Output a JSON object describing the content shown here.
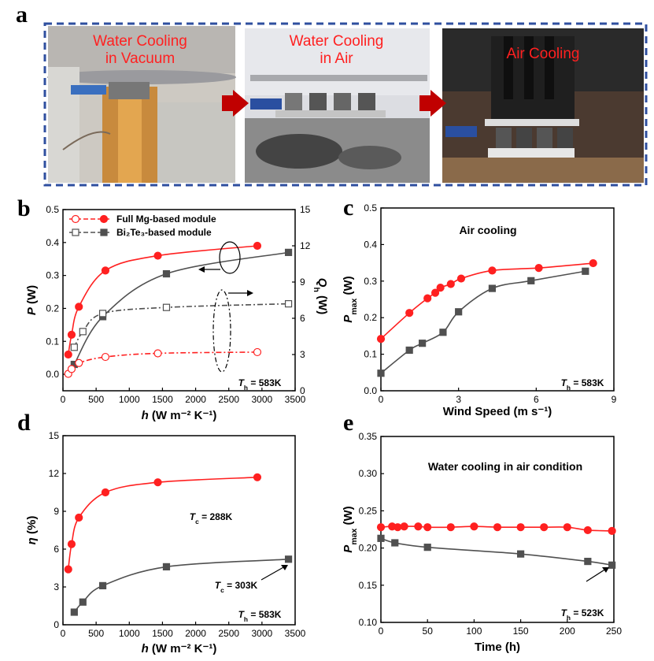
{
  "panel_letters": {
    "a": "a",
    "b": "b",
    "c": "c",
    "d": "d",
    "e": "e"
  },
  "panel_a": {
    "photo_labels": [
      {
        "line1": "Water Cooling",
        "line2": "in Vacuum"
      },
      {
        "line1": "Water Cooling",
        "line2": "in Air"
      },
      {
        "line1": "Air  Cooling",
        "line2": ""
      }
    ],
    "arrow_color": "#c00000",
    "frame_color": "#2f4f9f"
  },
  "colors": {
    "red": "#ff2020",
    "gray": "#505050"
  },
  "chart_data": [
    {
      "id": "b",
      "type": "line",
      "xlabel": "h (W m⁻² K⁻¹)",
      "ylabel_left": "P (W)",
      "ylabel_right": "Q_h (W)",
      "xlim": [
        0,
        3500
      ],
      "ylim": [
        -0.05,
        0.5
      ],
      "ylim_right": [
        0,
        15
      ],
      "xticks": [
        0,
        500,
        1000,
        1500,
        2000,
        2500,
        3000,
        3500
      ],
      "yticks": [
        0.0,
        0.1,
        0.2,
        0.3,
        0.4,
        0.5
      ],
      "yticks_right": [
        0,
        3,
        6,
        9,
        12,
        15
      ],
      "annotation": "T_h = 583K",
      "legend": [
        {
          "label": "Full Mg-based module",
          "color": "#ff2020",
          "marker": "circle"
        },
        {
          "label": "Bi₂Te₃-based module",
          "color": "#505050",
          "marker": "square"
        }
      ],
      "series": [
        {
          "name": "Full Mg-based module",
          "axis": "left",
          "fill": true,
          "marker": "circle",
          "color": "#ff2020",
          "x": [
            80,
            130,
            240,
            640,
            1430,
            2930
          ],
          "y": [
            0.06,
            0.12,
            0.205,
            0.315,
            0.36,
            0.39
          ]
        },
        {
          "name": "Bi₂Te₃-based module",
          "axis": "left",
          "fill": true,
          "marker": "square",
          "color": "#505050",
          "x": [
            170,
            600,
            1560,
            3400
          ],
          "y": [
            0.03,
            0.175,
            0.305,
            0.37
          ]
        },
        {
          "name": "Full Mg-based module",
          "axis": "right",
          "fill": false,
          "marker": "circle",
          "color": "#ff2020",
          "x": [
            80,
            130,
            240,
            640,
            1430,
            2930
          ],
          "y": [
            1.4,
            1.8,
            2.3,
            2.8,
            3.1,
            3.2
          ]
        },
        {
          "name": "Bi₂Te₃-based module",
          "axis": "right",
          "fill": false,
          "marker": "square",
          "color": "#505050",
          "x": [
            170,
            300,
            600,
            1560,
            3400
          ],
          "y": [
            3.6,
            4.9,
            6.4,
            6.9,
            7.2
          ]
        }
      ]
    },
    {
      "id": "c",
      "type": "line",
      "title": "Air cooling",
      "xlabel": "Wind Speed (m s⁻¹)",
      "ylabel": "P_max (W)",
      "xlim": [
        0,
        9
      ],
      "ylim": [
        0,
        0.5
      ],
      "xticks": [
        0,
        3,
        6,
        9
      ],
      "yticks": [
        0.0,
        0.1,
        0.2,
        0.3,
        0.4,
        0.5
      ],
      "annotation": "T_h = 583K",
      "series": [
        {
          "marker": "circle",
          "color": "#ff2020",
          "x": [
            0,
            1.1,
            1.8,
            2.1,
            2.3,
            2.7,
            3.1,
            4.3,
            6.1,
            8.2
          ],
          "y": [
            0.142,
            0.213,
            0.253,
            0.268,
            0.282,
            0.292,
            0.307,
            0.329,
            0.336,
            0.349
          ]
        },
        {
          "marker": "square",
          "color": "#505050",
          "x": [
            0,
            1.1,
            1.6,
            2.4,
            3.0,
            4.3,
            5.8,
            7.9
          ],
          "y": [
            0.048,
            0.111,
            0.13,
            0.16,
            0.216,
            0.28,
            0.301,
            0.327
          ]
        }
      ]
    },
    {
      "id": "d",
      "type": "line",
      "xlabel": "h (W m⁻² K⁻¹)",
      "ylabel": "η (%)",
      "xlim": [
        0,
        3500
      ],
      "ylim": [
        0,
        15
      ],
      "xticks": [
        0,
        500,
        1000,
        1500,
        2000,
        2500,
        3000,
        3500
      ],
      "yticks": [
        0,
        3,
        6,
        9,
        12,
        15
      ],
      "annotation": "T_h = 583K",
      "curve_labels": [
        "T_c = 288K",
        "T_c = 303K"
      ],
      "series": [
        {
          "marker": "circle",
          "color": "#ff2020",
          "x": [
            80,
            130,
            240,
            640,
            1430,
            2930
          ],
          "y": [
            4.4,
            6.4,
            8.5,
            10.5,
            11.3,
            11.7
          ]
        },
        {
          "marker": "square",
          "color": "#505050",
          "x": [
            170,
            300,
            600,
            1560,
            3400
          ],
          "y": [
            1.0,
            1.8,
            3.1,
            4.6,
            5.2
          ]
        }
      ]
    },
    {
      "id": "e",
      "type": "line",
      "title": "Water cooling in air condition",
      "xlabel": "Time (h)",
      "ylabel": "P_max (W)",
      "xlim": [
        0,
        250
      ],
      "ylim": [
        0.1,
        0.35
      ],
      "xticks": [
        0,
        50,
        100,
        150,
        200,
        250
      ],
      "yticks": [
        0.1,
        0.15,
        0.2,
        0.25,
        0.3,
        0.35
      ],
      "annotation": "T_h = 523K",
      "series": [
        {
          "marker": "circle",
          "color": "#ff2020",
          "x": [
            0,
            12,
            18,
            25,
            40,
            50,
            75,
            100,
            125,
            150,
            175,
            200,
            222,
            248
          ],
          "y": [
            0.228,
            0.229,
            0.228,
            0.229,
            0.229,
            0.228,
            0.228,
            0.229,
            0.228,
            0.228,
            0.228,
            0.228,
            0.224,
            0.223
          ]
        },
        {
          "marker": "square",
          "color": "#505050",
          "x": [
            0,
            15,
            50,
            150,
            222,
            248
          ],
          "y": [
            0.213,
            0.207,
            0.201,
            0.192,
            0.182,
            0.177
          ]
        }
      ]
    }
  ]
}
